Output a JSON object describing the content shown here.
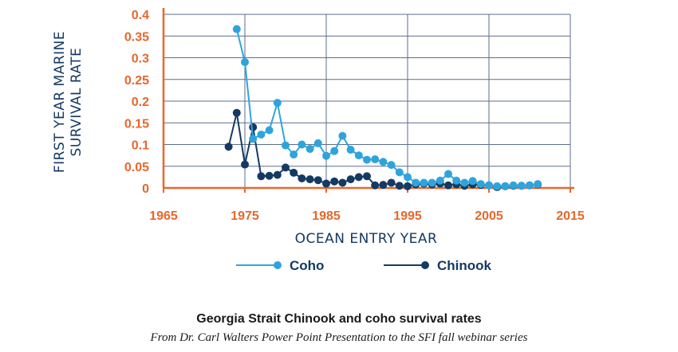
{
  "chart_data": {
    "type": "line",
    "title": "",
    "xlabel": "OCEAN ENTRY YEAR",
    "ylabel_lines": [
      "FIRST YEAR MARINE",
      "SURVIVAL RATE"
    ],
    "xlim": [
      1965,
      2015
    ],
    "ylim": [
      0,
      0.4
    ],
    "xticks": [
      1965,
      1975,
      1985,
      1995,
      2005,
      2015
    ],
    "yticks": [
      "0",
      "0.05",
      "0.1",
      "0.15",
      "0.2",
      "0.25",
      "0.3",
      "0.35",
      "0.4"
    ],
    "grid": true,
    "legend_position": "bottom",
    "colors": {
      "axis": "#e8672a",
      "grid": "#5b6d8c",
      "coho": "#2fa4dc",
      "chinook": "#143a63",
      "title": "#143a63"
    },
    "series": [
      {
        "name": "Coho",
        "key": "coho",
        "x": [
          1974,
          1975,
          1976,
          1977,
          1978,
          1979,
          1980,
          1981,
          1982,
          1983,
          1984,
          1985,
          1986,
          1987,
          1988,
          1989,
          1990,
          1991,
          1992,
          1993,
          1994,
          1995,
          1996,
          1997,
          1998,
          1999,
          2000,
          2001,
          2002,
          2003,
          2004,
          2005,
          2006,
          2007,
          2008,
          2009,
          2010,
          2011
        ],
        "values": [
          0.366,
          0.29,
          0.113,
          0.123,
          0.133,
          0.196,
          0.098,
          0.077,
          0.1,
          0.09,
          0.103,
          0.074,
          0.085,
          0.12,
          0.088,
          0.075,
          0.065,
          0.066,
          0.06,
          0.053,
          0.036,
          0.025,
          0.012,
          0.012,
          0.012,
          0.017,
          0.032,
          0.017,
          0.012,
          0.016,
          0.009,
          0.006,
          0.004,
          0.004,
          0.006,
          0.005,
          0.006,
          0.009
        ]
      },
      {
        "name": "Chinook",
        "key": "chinook",
        "x": [
          1973,
          1974,
          1975,
          1976,
          1977,
          1978,
          1979,
          1980,
          1981,
          1982,
          1983,
          1984,
          1985,
          1986,
          1987,
          1988,
          1989,
          1990,
          1991,
          1992,
          1993,
          1994,
          1995,
          1996,
          1997,
          1998,
          1999,
          2000,
          2001,
          2002,
          2003,
          2004,
          2005,
          2006,
          2007,
          2008,
          2009,
          2010,
          2011
        ],
        "values": [
          0.095,
          0.173,
          0.054,
          0.14,
          0.027,
          0.028,
          0.03,
          0.047,
          0.035,
          0.022,
          0.02,
          0.018,
          0.01,
          0.015,
          0.012,
          0.02,
          0.025,
          0.027,
          0.006,
          0.007,
          0.012,
          0.005,
          0.004,
          0.008,
          0.01,
          0.008,
          0.01,
          0.006,
          0.008,
          0.005,
          0.008,
          0.007,
          0.006,
          0.002,
          0.004,
          0.005,
          0.005,
          0.006,
          0.008
        ]
      }
    ]
  },
  "caption": {
    "title": "Georgia Strait Chinook and coho survival rates",
    "source": "From Dr. Carl Walters Power Point Presentation to the SFI fall webinar series"
  }
}
